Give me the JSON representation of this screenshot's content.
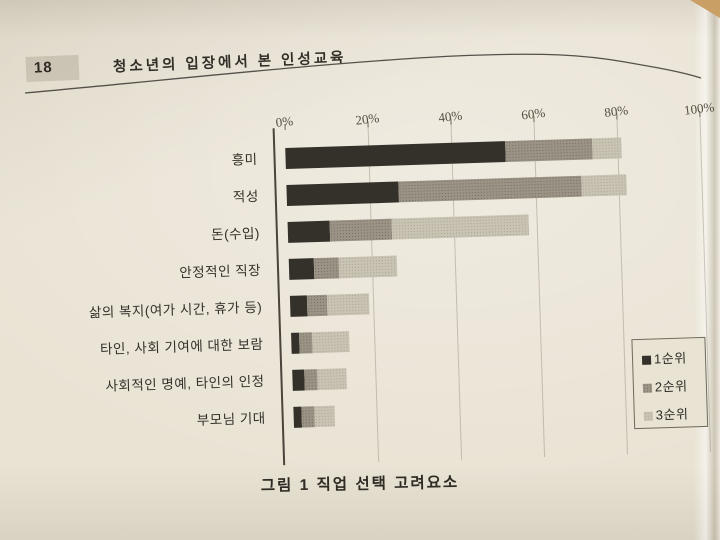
{
  "page": {
    "number": "18",
    "header_title": "청소년의 입장에서 본 인성교육",
    "caption": "그림 1 직업 선택 고려요소"
  },
  "chart_data": {
    "type": "bar",
    "orientation": "horizontal",
    "stacked": true,
    "title": "그림 1 직업 선택 고려요소",
    "categories": [
      "흥미",
      "적성",
      "돈(수입)",
      "안정적인 직장",
      "삶의 복지(여가 시간, 휴가 등)",
      "타인, 사회 기여에 대한 보람",
      "사회적인 명예, 타인의 인정",
      "부모님 기대"
    ],
    "series": [
      {
        "name": "1순위",
        "color": "#34302a",
        "values": [
          53,
          27,
          10,
          6,
          4,
          2,
          3,
          2
        ]
      },
      {
        "name": "2순위",
        "color": "#9b9486",
        "values": [
          21,
          44,
          15,
          6,
          5,
          3,
          3,
          3
        ]
      },
      {
        "name": "3순위",
        "color": "#c9c3b3",
        "values": [
          7,
          11,
          33,
          14,
          10,
          9,
          7,
          5
        ]
      }
    ],
    "x_ticks": [
      "0%",
      "20%",
      "40%",
      "60%",
      "80%",
      "100%"
    ],
    "xlim": [
      0,
      100
    ],
    "grid": true,
    "legend_position": "right",
    "legend_labels": [
      "1순위",
      "2순위",
      "3순위"
    ]
  }
}
